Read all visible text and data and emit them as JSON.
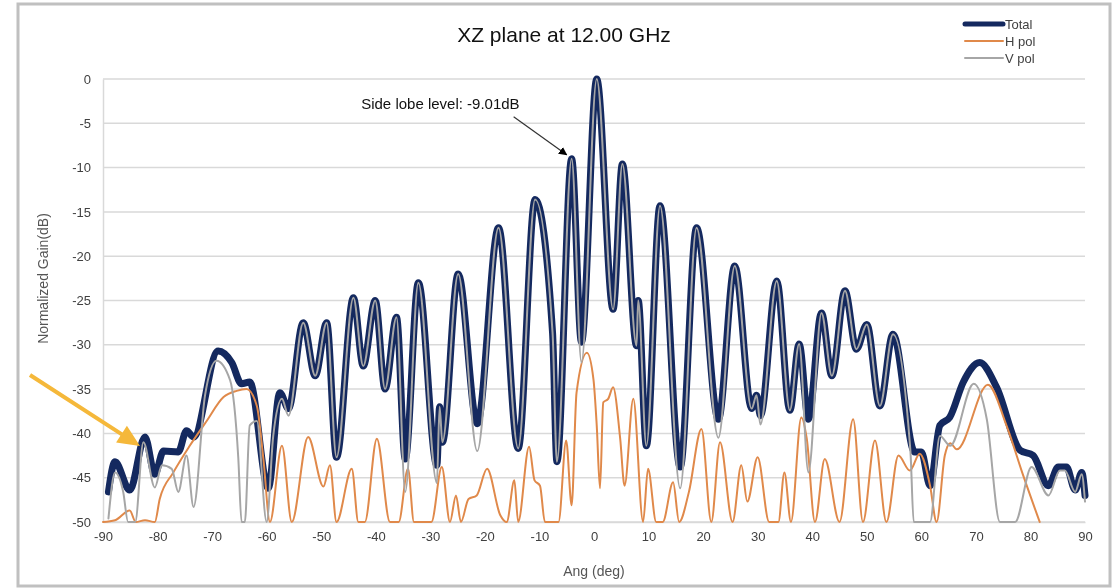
{
  "chart_data": {
    "type": "line",
    "title": "XZ plane at 12.00 GHz",
    "xlabel": "Ang (deg)",
    "ylabel": "Normalized Gain(dB)",
    "xlim": [
      -90,
      90
    ],
    "xticks": [
      -90,
      -80,
      -70,
      -60,
      -50,
      -40,
      -30,
      -20,
      -10,
      0,
      10,
      20,
      30,
      40,
      50,
      60,
      70,
      80,
      90
    ],
    "ylim": [
      -50,
      0
    ],
    "yticks": [
      -50,
      -45,
      -40,
      -35,
      -30,
      -25,
      -20,
      -15,
      -10,
      -5,
      0
    ],
    "grid": "y",
    "legend": "top right",
    "annotations": [
      {
        "text": "Side lobe level: -9.01dB",
        "x": -4.1,
        "y": -9.01
      }
    ],
    "series": [
      {
        "name": "Total",
        "color": "#14295f",
        "x": [
          -89,
          -87.8,
          -85.1,
          -82.3,
          -80.5,
          -78.9,
          -76.2,
          -74.7,
          -73.4,
          -68.9,
          -66.4,
          -64.6,
          -63.1,
          -59.7,
          -57.6,
          -56,
          -53.3,
          -51.1,
          -49,
          -47.2,
          -44.1,
          -42.3,
          -40.1,
          -38.3,
          -36.2,
          -34.6,
          -32.2,
          -28.8,
          -28.3,
          -27.8,
          -24.9,
          -21.4,
          -17.5,
          -13.9,
          -10.8,
          -7.6,
          -6.8,
          -4.1,
          -2.3,
          0.5,
          3.5,
          5.2,
          7.8,
          8.1,
          9.6,
          12.1,
          15.8,
          18.8,
          22.8,
          25.8,
          28.9,
          29.8,
          30.5,
          33.5,
          35.9,
          37.6,
          39.3,
          41.7,
          43.6,
          46,
          48.1,
          50,
          52.4,
          54.8,
          58.8,
          60,
          61.6,
          63.4,
          65.2,
          67.7,
          70.7,
          73.8,
          78.1,
          80.5,
          83.3,
          85.1,
          86.6,
          88.2,
          89.4,
          90
        ],
        "values": [
          -46.6,
          -43.2,
          -46.4,
          -40.4,
          -44.6,
          -42,
          -42.1,
          -39.7,
          -40.4,
          -30.7,
          -32,
          -34.4,
          -34.2,
          -46.2,
          -35.4,
          -37.2,
          -27.5,
          -33.5,
          -27.5,
          -42.7,
          -24.7,
          -32.4,
          -25,
          -35,
          -26.9,
          -42.9,
          -23,
          -43.6,
          -37,
          -41,
          -22,
          -38.9,
          -16.8,
          -41.7,
          -13.6,
          -28.6,
          -43.2,
          -9,
          -29.7,
          0,
          -26,
          -9.6,
          -30.1,
          -25,
          -41.4,
          -14.3,
          -43.8,
          -16.8,
          -38.4,
          -21.1,
          -37.2,
          -35.7,
          -38,
          -22.8,
          -37.4,
          -29.9,
          -38.4,
          -26.4,
          -33.5,
          -23.9,
          -30.5,
          -27.7,
          -36.9,
          -28.8,
          -42.1,
          -42.1,
          -45.9,
          -39.1,
          -38.2,
          -34.2,
          -32,
          -34.8,
          -41.9,
          -42.5,
          -45.9,
          -43.8,
          -43.8,
          -46.4,
          -44.4,
          -47
        ]
      },
      {
        "name": "H pol",
        "color": "#e0894a",
        "x": [
          -90,
          -87.8,
          -85.1,
          -84,
          -82.3,
          -80.5,
          -79.6,
          -77.1,
          -74.1,
          -71,
          -67.9,
          -65.5,
          -63.7,
          -61.8,
          -60.6,
          -59.4,
          -57.2,
          -55.4,
          -52.4,
          -49.6,
          -48.4,
          -47.2,
          -44.4,
          -43.2,
          -42,
          -39.8,
          -37.4,
          -35.8,
          -34.1,
          -33,
          -29.8,
          -27.9,
          -26.4,
          -25.3,
          -24.4,
          -23,
          -21.5,
          -19.6,
          -17.2,
          -16,
          -14.6,
          -13.9,
          -11.9,
          -10.9,
          -9.9,
          -9,
          -6.5,
          -5.1,
          -4.1,
          -3.2,
          -1.3,
          -0.1,
          0.5,
          1.1,
          1.7,
          2.6,
          3.5,
          4.8,
          5.6,
          7.2,
          9,
          9.9,
          11.4,
          12.6,
          14.5,
          15.6,
          17.4,
          19.7,
          21.5,
          23.1,
          25.4,
          27,
          28.1,
          30,
          32.1,
          33.8,
          34.9,
          36.1,
          38,
          39,
          40.5,
          42.3,
          45,
          47.5,
          49.3,
          51.5,
          53.6,
          55.8,
          57.9,
          59.7,
          61.6,
          62.8,
          64.3,
          65.3,
          66.5,
          72.2,
          75.6,
          78.7,
          81.7
        ],
        "values": [
          -50,
          -49.8,
          -48.7,
          -50,
          -49.8,
          -50,
          -47.4,
          -44.4,
          -41.4,
          -38.6,
          -35.9,
          -35.2,
          -35,
          -36.9,
          -42.9,
          -50,
          -41.4,
          -50,
          -40.4,
          -46,
          -43.6,
          -50,
          -44,
          -50,
          -50,
          -40.6,
          -50,
          -50,
          -44,
          -50,
          -50,
          -43.8,
          -50,
          -47,
          -50,
          -47.4,
          -47,
          -44,
          -49.2,
          -50,
          -45.3,
          -50,
          -41.5,
          -45.3,
          -45.9,
          -50,
          -50,
          -40.8,
          -48.1,
          -35.4,
          -30.9,
          -33.9,
          -39.1,
          -46.2,
          -36.5,
          -36.1,
          -34.8,
          -40.6,
          -45.9,
          -36.1,
          -50,
          -44,
          -50,
          -50,
          -45.5,
          -50,
          -46.6,
          -39.5,
          -50,
          -41,
          -50,
          -43.6,
          -47.7,
          -42.7,
          -50,
          -50,
          -44.4,
          -50,
          -38.2,
          -40.6,
          -50,
          -42.9,
          -50,
          -38.4,
          -50,
          -40.8,
          -50,
          -42.5,
          -44.2,
          -42.3,
          -45.9,
          -50,
          -42.5,
          -41.1,
          -41.8,
          -34.5,
          -39.1,
          -44.8,
          -50
        ]
      },
      {
        "name": "V pol",
        "color": "#a6a6a6",
        "x": [
          -89,
          -87.8,
          -86.3,
          -85.4,
          -84.1,
          -82.6,
          -80.5,
          -79.2,
          -77.4,
          -76.2,
          -74.7,
          -73.4,
          -71.3,
          -69.2,
          -66.7,
          -65.2,
          -64.6,
          -64,
          -63.1,
          -61.8,
          -60,
          -58.8,
          -57.2,
          -56,
          -53.3,
          -51.1,
          -49,
          -47.2,
          -44.1,
          -42.3,
          -40.1,
          -38.3,
          -36.2,
          -34.6,
          -32.2,
          -28.8,
          -28.3,
          -27.8,
          -24.9,
          -21.4,
          -17.5,
          -13.9,
          -10.8,
          -7.6,
          -6.8,
          -4.1,
          -2.3,
          0.5,
          3.5,
          5.2,
          7.8,
          8.1,
          9.6,
          12.1,
          15.8,
          18.8,
          22.8,
          25.8,
          28.9,
          29.8,
          30.5,
          33.5,
          35.9,
          37.6,
          39.3,
          41.7,
          43.6,
          46,
          48.1,
          50,
          52.4,
          54.8,
          58,
          58.6,
          61.6,
          63.4,
          65.3,
          69.6,
          72,
          74.4,
          77.2,
          80.2,
          83.3,
          85.4,
          86.3,
          88.2,
          89.4,
          90
        ],
        "values": [
          -49.6,
          -44.4,
          -46.6,
          -50,
          -50,
          -41,
          -46.1,
          -43.6,
          -44,
          -46.6,
          -42.5,
          -48.3,
          -35.7,
          -31.8,
          -34,
          -42.8,
          -50,
          -50,
          -39.1,
          -38.6,
          -50,
          -40.3,
          -36.1,
          -38,
          -27.5,
          -33.5,
          -27.5,
          -42.7,
          -24.7,
          -32.4,
          -25,
          -35,
          -26.9,
          -46.6,
          -23,
          -45.6,
          -37,
          -41,
          -22,
          -42,
          -16.8,
          -41.7,
          -13.6,
          -28.6,
          -43.2,
          -9,
          -32,
          0,
          -26,
          -9.6,
          -30.1,
          -25,
          -41.4,
          -14.3,
          -46.2,
          -16.8,
          -40.5,
          -21.1,
          -37.2,
          -35.7,
          -39,
          -22.8,
          -37.4,
          -29.9,
          -44.4,
          -26.4,
          -33.5,
          -23.9,
          -30.5,
          -27.7,
          -36.9,
          -28.8,
          -42,
          -50,
          -50,
          -40.3,
          -41.4,
          -34.4,
          -38.4,
          -50,
          -50,
          -43.8,
          -47,
          -44.2,
          -44.2,
          -46.6,
          -44.6,
          -47.7
        ]
      }
    ]
  }
}
